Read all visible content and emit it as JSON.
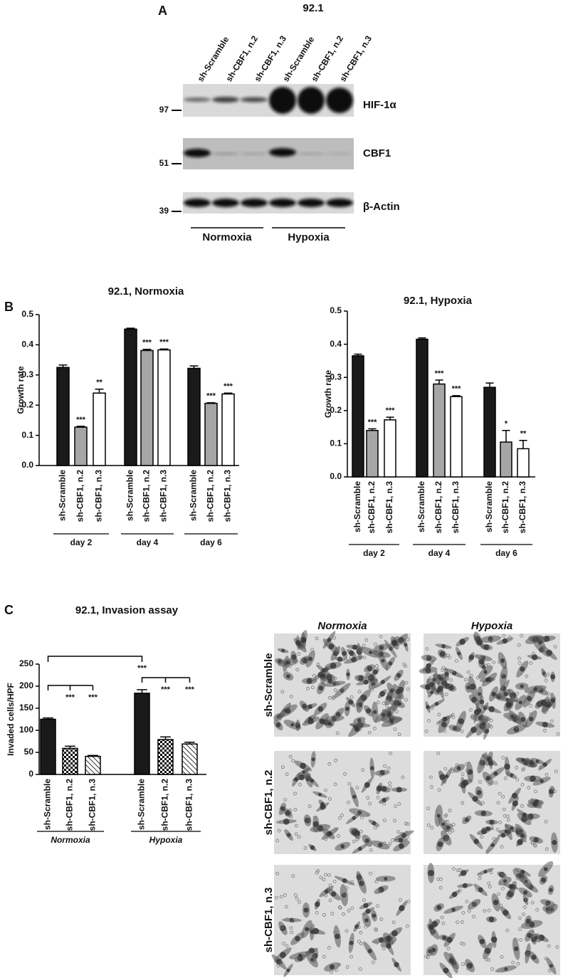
{
  "figure": {
    "panel_a": {
      "label": "A",
      "title": "92.1",
      "lanes": [
        "sh-Scramble",
        "sh-CBF1, n.2",
        "sh-CBF1, n.3",
        "sh-Scramble",
        "sh-CBF1, n.2",
        "sh-CBF1, n.3"
      ],
      "blots": [
        {
          "name": "HIF-1α",
          "marker": 97
        },
        {
          "name": "CBF1",
          "marker": 51
        },
        {
          "name": "β-Actin",
          "marker": 39
        }
      ],
      "conditions": [
        "Normoxia",
        "Hypoxia"
      ]
    },
    "panel_b_label": "B",
    "panel_c_label": "C",
    "micrographs": {
      "columns": [
        "Normoxia",
        "Hypoxia"
      ],
      "rows": [
        "sh-Scramble",
        "sh-CBF1, n.2",
        "sh-CBF1, n.3"
      ]
    }
  },
  "chart_data": [
    {
      "type": "bar",
      "title": "92.1, Normoxia",
      "y_label": "Growth rate",
      "categories": [
        "day 2",
        "day 4",
        "day 6"
      ],
      "ylim": [
        0,
        0.5
      ],
      "yticks": [
        {
          "value": 0,
          "label": "0.0"
        },
        0.1,
        0.2,
        0.3,
        0.4,
        0.5
      ],
      "series": [
        {
          "name": "sh-Scramble",
          "color": "#1a1a1a",
          "values": [
            0.325,
            0.452,
            0.322
          ],
          "errors": [
            0.008,
            0.003,
            0.008
          ]
        },
        {
          "name": "sh-CBF1, n.2",
          "color": "#a6a6a6",
          "values": [
            0.127,
            0.381,
            0.206
          ],
          "errors": [
            0.003,
            0.004,
            0.002
          ],
          "significance": [
            "***",
            "***",
            "***"
          ]
        },
        {
          "name": "sh-CBF1, n.3",
          "color": "#ffffff",
          "values": [
            0.24,
            0.383,
            0.237
          ],
          "errors": [
            0.013,
            0.003,
            0.003
          ],
          "significance": [
            "**",
            "***",
            "***"
          ]
        }
      ]
    },
    {
      "type": "bar",
      "title": "92.1, Hypoxia",
      "y_label": "Growth rate",
      "categories": [
        "day 2",
        "day 4",
        "day 6"
      ],
      "ylim": [
        0,
        0.5
      ],
      "yticks": [
        {
          "value": 0,
          "label": "0.0"
        },
        0.1,
        0.2,
        0.3,
        0.4,
        0.5
      ],
      "series": [
        {
          "name": "sh-Scramble",
          "color": "#1a1a1a",
          "values": [
            0.365,
            0.415,
            0.27
          ],
          "errors": [
            0.005,
            0.004,
            0.013
          ]
        },
        {
          "name": "sh-CBF1, n.2",
          "color": "#a6a6a6",
          "values": [
            0.14,
            0.28,
            0.105
          ],
          "errors": [
            0.005,
            0.012,
            0.035
          ],
          "significance": [
            "***",
            "***",
            "*"
          ]
        },
        {
          "name": "sh-CBF1, n.3",
          "color": "#ffffff",
          "values": [
            0.172,
            0.242,
            0.085
          ],
          "errors": [
            0.008,
            0.003,
            0.025
          ],
          "significance": [
            "***",
            "***",
            "**"
          ]
        }
      ]
    },
    {
      "type": "bar",
      "title": "92.1, Invasion assay",
      "y_label": "Invaded cells/HPF",
      "categories": [
        "Normoxia",
        "Hypoxia"
      ],
      "ylim": [
        0,
        250
      ],
      "yticks": [
        0,
        50,
        100,
        150,
        200,
        250
      ],
      "series": [
        {
          "name": "sh-Scramble",
          "color": "#1a1a1a",
          "values": [
            125,
            184
          ],
          "errors": [
            3,
            8
          ]
        },
        {
          "name": "sh-CBF1, n.2",
          "color": "#000000",
          "pattern": "checker",
          "values": [
            59,
            79
          ],
          "errors": [
            5,
            6
          ],
          "significance": [
            "***",
            "***"
          ]
        },
        {
          "name": "sh-CBF1, n.3",
          "color": "#000000",
          "pattern": "hatch",
          "values": [
            41,
            69
          ],
          "errors": [
            2,
            4
          ],
          "significance": [
            "***",
            "***"
          ]
        }
      ],
      "between_conditions": "***"
    }
  ]
}
